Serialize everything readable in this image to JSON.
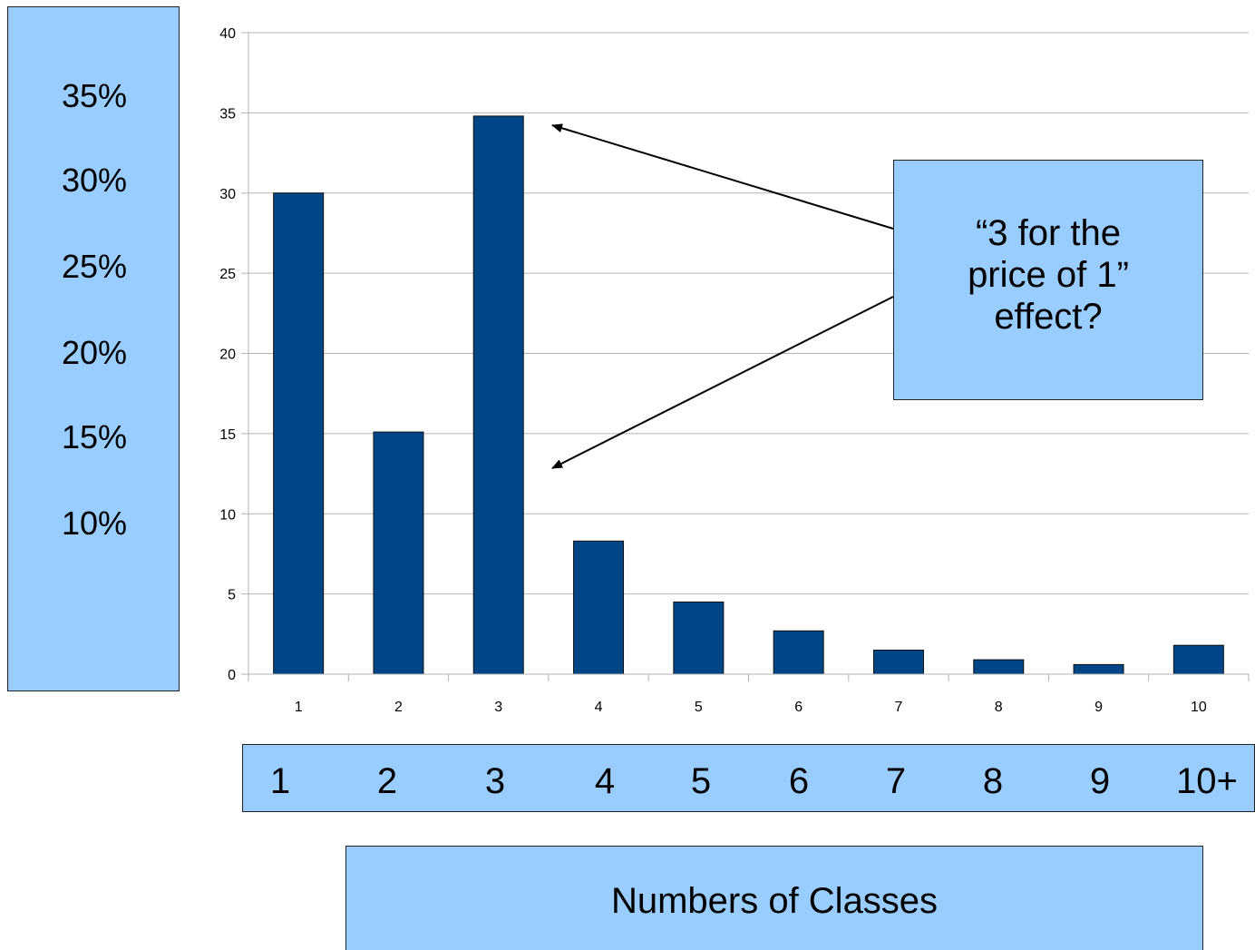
{
  "chart_data": {
    "type": "bar",
    "categories": [
      "1",
      "2",
      "3",
      "4",
      "5",
      "6",
      "7",
      "8",
      "9",
      "10"
    ],
    "values": [
      30,
      15.1,
      34.8,
      8.3,
      4.5,
      2.7,
      1.5,
      0.9,
      0.6,
      1.8
    ],
    "ylim": [
      0,
      40
    ],
    "yticks": [
      0,
      5,
      10,
      15,
      20,
      25,
      30,
      35,
      40
    ],
    "grid": true,
    "bar_color": "#004586",
    "grid_color": "#b3b3b3"
  },
  "overlay": {
    "percent_labels": [
      "35%",
      "30%",
      "25%",
      "20%",
      "15%",
      "10%"
    ],
    "category_labels": [
      "1",
      "2",
      "3",
      "4",
      "5",
      "6",
      "7",
      "8",
      "9",
      "10+"
    ],
    "xlabel": "Numbers of Classes",
    "annotation": "“3 for the\nprice of 1”\neffect?",
    "box_color": "#99ccff"
  }
}
